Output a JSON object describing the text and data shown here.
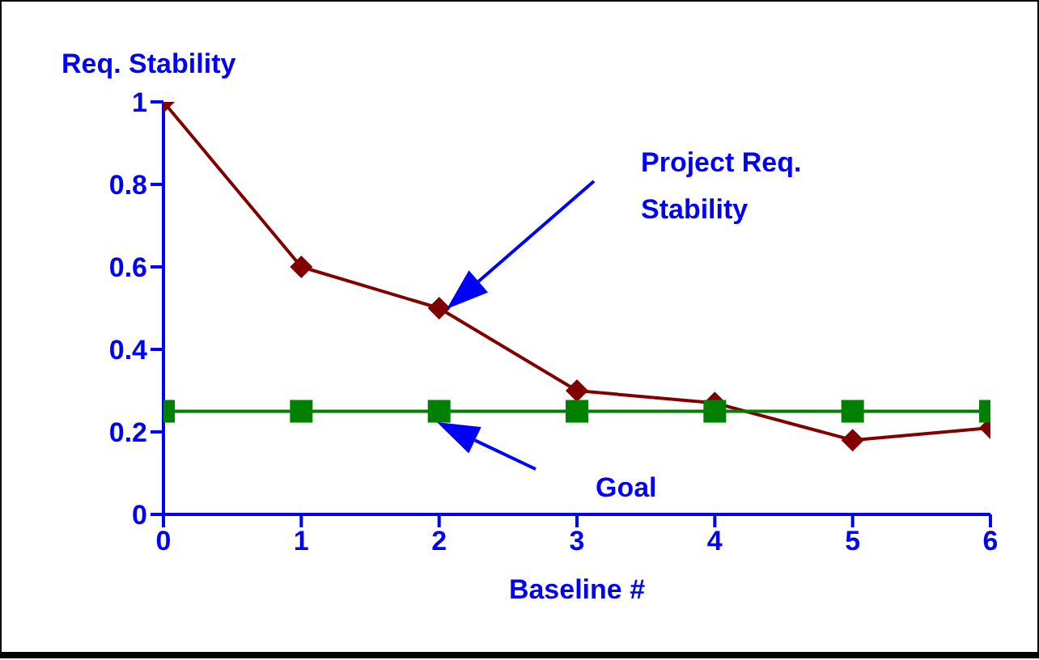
{
  "chart_data": {
    "type": "line",
    "xlabel": "Baseline #",
    "ylabel": "Req. Stability",
    "x": [
      0,
      1,
      2,
      3,
      4,
      5,
      6
    ],
    "series": [
      {
        "color": "#800000",
        "marker": "diamond",
        "values": [
          1,
          0.6,
          0.5,
          0.3,
          0.27,
          0.18,
          0.21
        ]
      },
      {
        "color": "#008000",
        "marker": "square",
        "values": [
          0.25,
          0.25,
          0.25,
          0.25,
          0.25,
          0.25,
          0.25
        ]
      }
    ],
    "annotations": [
      "Project Req. Stability",
      "Goal"
    ],
    "xlim": [
      0,
      6
    ],
    "xticks": [
      0,
      1,
      2,
      3,
      4,
      5,
      6
    ],
    "ylim": [
      0,
      1
    ],
    "yticks": [
      0,
      0.2,
      0.4,
      0.6,
      0.8,
      1
    ],
    "grid": false,
    "legend": false
  }
}
